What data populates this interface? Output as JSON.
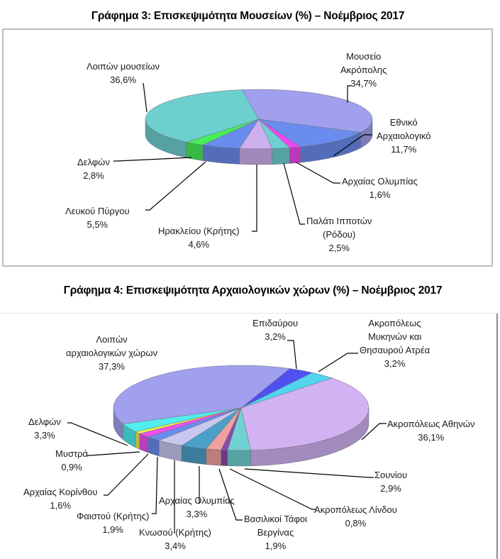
{
  "chart_data": [
    {
      "type": "pie",
      "title": "Γράφημα 3: Επισκεψιμότητα Μουσείων (%) – Νοέμβριος  2017",
      "style": "3d-pie",
      "categories": [
        "Μουσείο Ακρόπολης",
        "Εθνικό Αρχαιολογικό",
        "Αρχαίας Ολυμπίας",
        "Παλάτι Ιπποτών (Ρόδου)",
        "Ηρακλείου (Κρήτης)",
        "Λευκού Πύργου",
        "Δελφών",
        "Λοιπών μουσείων"
      ],
      "values": [
        34.7,
        11.7,
        1.6,
        2.5,
        4.6,
        5.5,
        2.8,
        36.6
      ],
      "colors": [
        "#a0a0ee",
        "#6a8cee",
        "#f046f0",
        "#6ecfcf",
        "#cfb0ee",
        "#6a8cee",
        "#46ee5a",
        "#6ecfcf"
      ],
      "labels": [
        {
          "lines": [
            "Μουσείο",
            "Ακρόπολης",
            "34,7%"
          ]
        },
        {
          "lines": [
            "Εθνικό",
            "Αρχαιολογικό",
            "11,7%"
          ]
        },
        {
          "lines": [
            "Αρχαίας Ολυμπίας",
            "1,6%"
          ]
        },
        {
          "lines": [
            "Παλάτι Ιπποτών",
            "(Ρόδου)",
            "2,5%"
          ]
        },
        {
          "lines": [
            "Ηρακλείου (Κρήτης)",
            "4,6%"
          ]
        },
        {
          "lines": [
            "Λευκού Πύργου",
            "5,5%"
          ]
        },
        {
          "lines": [
            "Δελφών",
            "2,8%"
          ]
        },
        {
          "lines": [
            "Λοιπών μουσείων",
            "36,6%"
          ]
        }
      ],
      "legend": "none (data labels with leader lines)"
    },
    {
      "type": "pie",
      "title": "Γράφημα 4: Επισκεψιμότητα Αρχαιολογικών χώρων (%) – Νοέμβριος 2017",
      "style": "3d-pie",
      "categories": [
        "Επιδαύρου",
        "Ακροπόλεως Μυκηνών και Θησαυρού Ατρέα",
        "Ακροπόλεως Αθηνών",
        "Σουνίου",
        "Ακροπόλεως Λίνδου",
        "Βασιλικοί Τάφοι Βεργίνας",
        "Αρχαίας Ολυμπίας",
        "Κνωσού (Κρήτης)",
        "Φαιστού (Κρήτης)",
        "Αρχαίας Κορίνθου",
        "Μυστρά",
        "Δελφών",
        "Λοιπών αρχαιολογικών χώρων"
      ],
      "values": [
        3.2,
        3.2,
        36.1,
        2.9,
        0.8,
        1.9,
        3.3,
        3.4,
        1.9,
        1.6,
        0.9,
        3.3,
        37.3
      ],
      "colors": [
        "#5050ee",
        "#50d4f0",
        "#d2b2f2",
        "#70d2d2",
        "#8a4aa8",
        "#f0a0a0",
        "#4aa0c8",
        "#c8c8ee",
        "#6a8cee",
        "#ee50ee",
        "#eeee50",
        "#50eeee",
        "#a0a0ee"
      ],
      "labels": [
        {
          "lines": [
            "Επιδαύρου",
            "3,2%"
          ]
        },
        {
          "lines": [
            "Ακροπόλεως",
            "Μυκηνών και",
            "Θησαυρού Ατρέα",
            "3,2%"
          ]
        },
        {
          "lines": [
            "Ακροπόλεως Αθηνών",
            "36,1%"
          ]
        },
        {
          "lines": [
            "Σουνίου",
            "2,9%"
          ]
        },
        {
          "lines": [
            "Ακροπόλεως Λίνδου",
            "0,8%"
          ]
        },
        {
          "lines": [
            "Βασιλικοί Τάφοι",
            "Βεργίνας",
            "1,9%"
          ]
        },
        {
          "lines": [
            "Αρχαίας Ολυμπίας",
            "3,3%"
          ]
        },
        {
          "lines": [
            "Κνωσού (Κρήτης)",
            "3,4%"
          ]
        },
        {
          "lines": [
            "Φαιστού (Κρήτης)",
            "1,9%"
          ]
        },
        {
          "lines": [
            "Αρχαίας Κορίνθου",
            "1,6%"
          ]
        },
        {
          "lines": [
            "Μυστρά",
            "0,9%"
          ]
        },
        {
          "lines": [
            "Δελφών",
            "3,3%"
          ]
        },
        {
          "lines": [
            "Λοιπών",
            "αρχαιολογικών χώρων",
            "37,3%"
          ]
        }
      ],
      "legend": "none (data labels with leader lines)"
    }
  ]
}
